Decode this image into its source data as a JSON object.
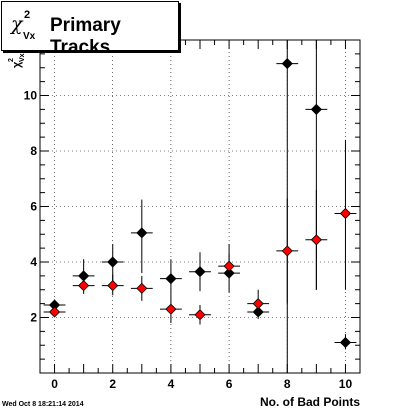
{
  "title": {
    "symbol": "χ",
    "superscript": "2",
    "subscript": "Vx",
    "main": "Primary Tracks"
  },
  "timestamp": "Wed Oct  8 18:21:14 2014",
  "chart_data": {
    "type": "scatter",
    "xlabel": "No. of Bad Points",
    "ylabel": "χ²_Vx",
    "xlim": [
      -0.5,
      10.5
    ],
    "ylim": [
      0,
      12
    ],
    "grid": true,
    "xticks": [
      0,
      2,
      4,
      6,
      8,
      10
    ],
    "yticks": [
      2,
      4,
      6,
      8,
      10
    ],
    "series": [
      {
        "color": "#000000",
        "points": [
          {
            "x": 0,
            "y": 2.45,
            "ylo": 2.25,
            "yhi": 2.65
          },
          {
            "x": 1,
            "y": 3.5,
            "ylo": 3.0,
            "yhi": 4.1
          },
          {
            "x": 2,
            "y": 4.0,
            "ylo": 3.3,
            "yhi": 4.65
          },
          {
            "x": 3,
            "y": 5.05,
            "ylo": 3.6,
            "yhi": 6.25
          },
          {
            "x": 4,
            "y": 3.4,
            "ylo": 2.85,
            "yhi": 4.1
          },
          {
            "x": 5,
            "y": 3.65,
            "ylo": 2.95,
            "yhi": 4.35
          },
          {
            "x": 6,
            "y": 3.6,
            "ylo": 2.9,
            "yhi": 4.65
          },
          {
            "x": 7,
            "y": 2.2,
            "ylo": 1.95,
            "yhi": 2.5
          },
          {
            "x": 8,
            "y": 11.15,
            "ylo": 0.0,
            "yhi": 12.0
          },
          {
            "x": 9,
            "y": 9.5,
            "ylo": 3.0,
            "yhi": 12.0
          },
          {
            "x": 10,
            "y": 1.1,
            "ylo": 0.85,
            "yhi": 1.4
          }
        ]
      },
      {
        "color": "#ff0000",
        "points": [
          {
            "x": 0,
            "y": 2.2,
            "ylo": 2.05,
            "yhi": 2.35
          },
          {
            "x": 1,
            "y": 3.15,
            "ylo": 2.85,
            "yhi": 3.45
          },
          {
            "x": 2,
            "y": 3.15,
            "ylo": 2.8,
            "yhi": 3.55
          },
          {
            "x": 3,
            "y": 3.05,
            "ylo": 2.6,
            "yhi": 3.5
          },
          {
            "x": 4,
            "y": 2.3,
            "ylo": 1.8,
            "yhi": 2.85
          },
          {
            "x": 5,
            "y": 2.1,
            "ylo": 1.75,
            "yhi": 2.45
          },
          {
            "x": 6,
            "y": 3.85,
            "ylo": 3.4,
            "yhi": 4.3
          },
          {
            "x": 7,
            "y": 2.5,
            "ylo": 2.1,
            "yhi": 3.0
          },
          {
            "x": 8,
            "y": 4.4,
            "ylo": 2.5,
            "yhi": 6.3
          },
          {
            "x": 9,
            "y": 4.8,
            "ylo": 3.0,
            "yhi": 6.6
          },
          {
            "x": 10,
            "y": 5.75,
            "ylo": 3.0,
            "yhi": 8.4
          }
        ]
      }
    ]
  }
}
